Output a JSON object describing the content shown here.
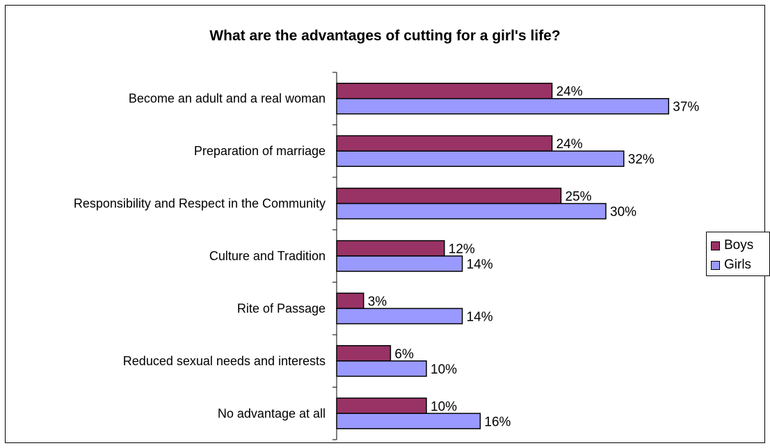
{
  "chart_data": {
    "type": "bar",
    "orientation": "horizontal",
    "title": "What are the advantages of cutting for a girl's life?",
    "categories": [
      "Become an adult and a real woman",
      "Preparation of marriage",
      "Responsibility and Respect in the Community",
      "Culture and Tradition",
      "Rite of Passage",
      "Reduced sexual needs and interests",
      "No advantage at all"
    ],
    "series": [
      {
        "name": "Boys",
        "color": "#993366",
        "values": [
          24,
          24,
          25,
          12,
          3,
          6,
          10
        ],
        "labels": [
          "24%",
          "24%",
          "25%",
          "12%",
          "3%",
          "6%",
          "10%"
        ]
      },
      {
        "name": "Girls",
        "color": "#9999ff",
        "values": [
          37,
          32,
          30,
          14,
          14,
          10,
          16
        ],
        "labels": [
          "37%",
          "32%",
          "30%",
          "14%",
          "14%",
          "10%",
          "16%"
        ]
      }
    ],
    "xlim": [
      0,
      48
    ],
    "grid": false,
    "legend_position": "right"
  }
}
